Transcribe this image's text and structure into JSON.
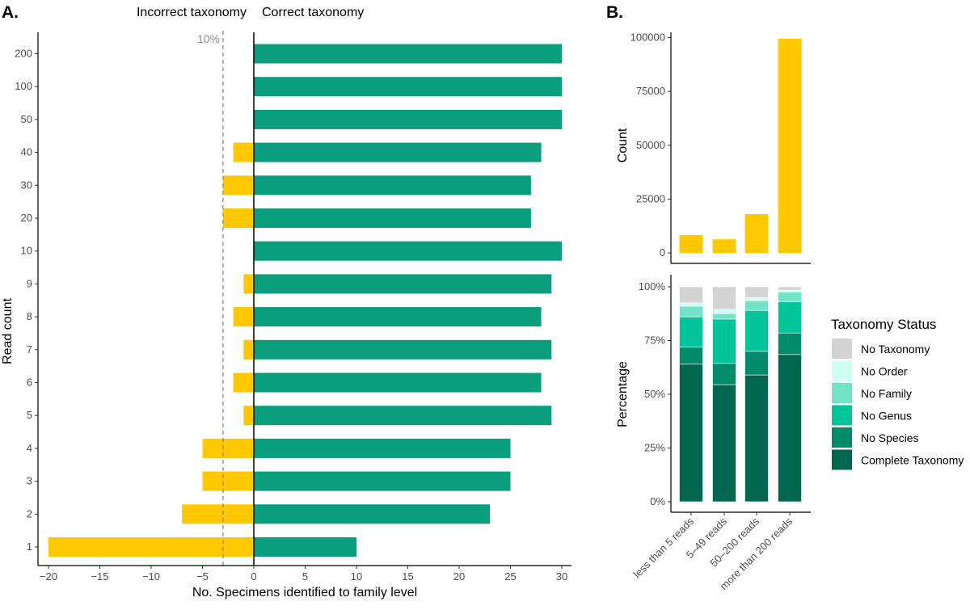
{
  "colors": {
    "correct": "#0A9E7D",
    "incorrect": "#FFC800",
    "count_bar": "#FFC800",
    "axis": "#000000",
    "tick_text": "#4d4d4d",
    "ref_line": "#8c8c8c"
  },
  "panel_a": {
    "tag": "A.",
    "header_left": "Incorrect taxonomy",
    "header_right": "Correct taxonomy",
    "ref_label": "10%",
    "ref_value": -3,
    "chart_data": {
      "type": "bar",
      "orientation": "horizontal",
      "categories": [
        "1",
        "2",
        "3",
        "4",
        "5",
        "6",
        "7",
        "8",
        "9",
        "10",
        "20",
        "30",
        "40",
        "50",
        "100",
        "200"
      ],
      "series": [
        {
          "name": "Correct taxonomy",
          "values": [
            10,
            23,
            25,
            25,
            29,
            28,
            29,
            28,
            29,
            30,
            27,
            27,
            28,
            30,
            30,
            30
          ]
        },
        {
          "name": "Incorrect taxonomy",
          "values": [
            -20,
            -7,
            -5,
            -5,
            -1,
            -2,
            -1,
            -2,
            -1,
            0,
            -3,
            -3,
            -2,
            0,
            0,
            0
          ]
        }
      ],
      "xlabel": "No. Specimens identified to family level",
      "ylabel": "Read count",
      "xlim": [
        -20,
        30
      ],
      "xticks": [
        "−20",
        "−15",
        "−10",
        "−5",
        "0",
        "5",
        "10",
        "15",
        "20",
        "25",
        "30"
      ],
      "grid": false
    }
  },
  "panel_b": {
    "tag": "B.",
    "count_chart": {
      "type": "bar",
      "categories": [
        "less than 5 reads",
        "5–49 reads",
        "50–200 reads",
        "more than 200 reads"
      ],
      "values": [
        8300,
        6300,
        18000,
        99500
      ],
      "ylabel": "Count",
      "ylim": [
        0,
        100000
      ],
      "yticks": [
        "0",
        "25000",
        "50000",
        "75000",
        "100000"
      ],
      "grid": false
    },
    "percent_chart": {
      "type": "bar",
      "stacked": true,
      "categories": [
        "less than 5 reads",
        "5–49 reads",
        "50–200 reads",
        "more than 200 reads"
      ],
      "series": [
        {
          "name": "Complete Taxonomy",
          "color": "#00664F",
          "values": [
            64,
            54.5,
            59,
            68.5
          ]
        },
        {
          "name": "No Species",
          "color": "#008C6B",
          "values": [
            8,
            10,
            11,
            10
          ]
        },
        {
          "name": "No Genus",
          "color": "#00C49A",
          "values": [
            14,
            20.5,
            19,
            14.5
          ]
        },
        {
          "name": "No Family",
          "color": "#73E3C8",
          "values": [
            5,
            2.5,
            4.5,
            4.5
          ]
        },
        {
          "name": "No Order",
          "color": "#CCFFF2",
          "values": [
            1.5,
            2,
            1.5,
            1
          ]
        },
        {
          "name": "No Taxonomy",
          "color": "#D3D3D3",
          "values": [
            7.5,
            10.5,
            5,
            1.5
          ]
        }
      ],
      "ylabel": "Percentage",
      "ylim": [
        0,
        100
      ],
      "yticks": [
        "0%",
        "25%",
        "50%",
        "75%",
        "100%"
      ],
      "grid": false
    },
    "legend": {
      "title": "Taxonomy Status",
      "items": [
        {
          "label": "No Taxonomy",
          "color": "#D3D3D3"
        },
        {
          "label": "No Order",
          "color": "#CCFFF2"
        },
        {
          "label": "No Family",
          "color": "#73E3C8"
        },
        {
          "label": "No Genus",
          "color": "#00C49A"
        },
        {
          "label": "No Species",
          "color": "#008C6B"
        },
        {
          "label": "Complete Taxonomy",
          "color": "#00664F"
        }
      ]
    }
  }
}
